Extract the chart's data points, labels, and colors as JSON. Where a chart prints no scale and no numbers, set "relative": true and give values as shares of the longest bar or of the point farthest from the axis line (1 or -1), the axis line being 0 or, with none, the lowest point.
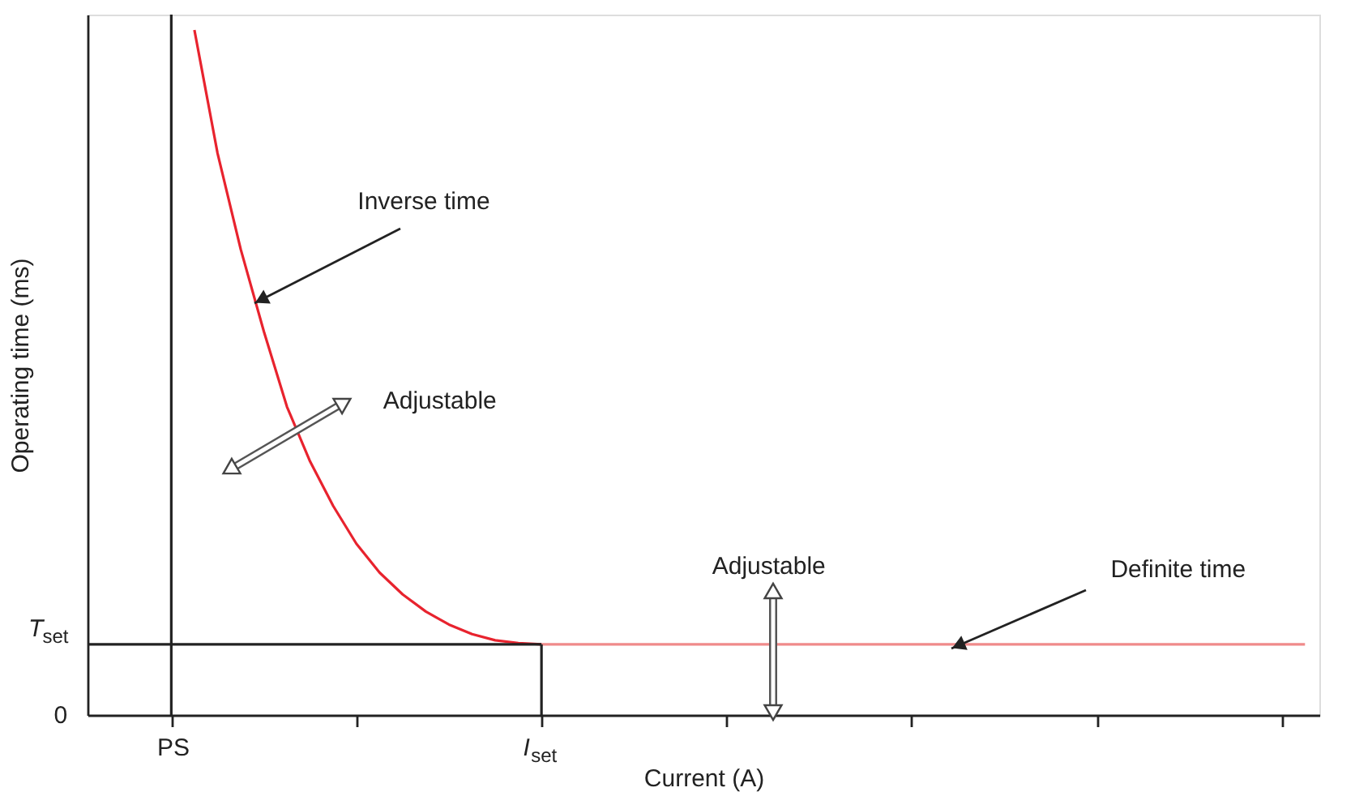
{
  "chart_data": {
    "type": "line",
    "relative": true,
    "xlabel": "Current (A)",
    "ylabel": "Operating time (ms)",
    "categories": [
      null,
      null,
      null,
      "PS",
      null,
      null,
      null,
      null,
      null,
      null,
      null,
      null,
      null,
      null,
      null,
      null,
      null,
      null,
      null,
      "I$_{set}$",
      null,
      null,
      null,
      null,
      null,
      null,
      null,
      null,
      null,
      null,
      null,
      null,
      null,
      null,
      null,
      null,
      null,
      null,
      null,
      null,
      null,
      null,
      null,
      null,
      null,
      null,
      null,
      null,
      null,
      null,
      null,
      null,
      null
    ],
    "grid": false,
    "marker": "none",
    "line_style": "solid",
    "series": [
      {
        "color": "#e8232e",
        "values": [
          null,
          null,
          null,
          null,
          1.0,
          0.82,
          0.68,
          0.56,
          0.45,
          0.37,
          0.305,
          0.25,
          0.208,
          0.176,
          0.151,
          0.132,
          0.118,
          0.109,
          0.105,
          0.103,
          null,
          null,
          null,
          null,
          null,
          null,
          null,
          null,
          null,
          null,
          null,
          null,
          null,
          null,
          null,
          null,
          null,
          null,
          null,
          null,
          null,
          null,
          null,
          null,
          null,
          null,
          null,
          null,
          null,
          null,
          null,
          null,
          null
        ]
      },
      {
        "color": "#f08a8a",
        "values": [
          null,
          null,
          null,
          null,
          null,
          null,
          null,
          null,
          null,
          null,
          null,
          null,
          null,
          null,
          null,
          null,
          null,
          null,
          null,
          0.103,
          0.103,
          0.103,
          0.103,
          0.103,
          0.103,
          0.103,
          0.103,
          0.103,
          0.103,
          0.103,
          0.103,
          0.103,
          0.103,
          0.103,
          0.103,
          0.103,
          0.103,
          0.103,
          0.103,
          0.103,
          0.103,
          0.103,
          0.103,
          0.103,
          0.103,
          0.103,
          0.103,
          0.103,
          0.103,
          0.103,
          0.103,
          0.103,
          0.103
        ]
      }
    ],
    "ref_lines": [
      {
        "axis": "x",
        "value": "PS",
        "label": null,
        "color": "#222222"
      },
      {
        "axis": "x",
        "value": "I$_{set}$",
        "label": null,
        "color": "#222222"
      },
      {
        "axis": "y",
        "value": 0.103,
        "label": "T$_{set}$",
        "color": "#222222"
      }
    ],
    "annotations": [
      "Inverse time",
      "Adjustable",
      "Adjustable",
      "Definite time",
      "0"
    ]
  }
}
